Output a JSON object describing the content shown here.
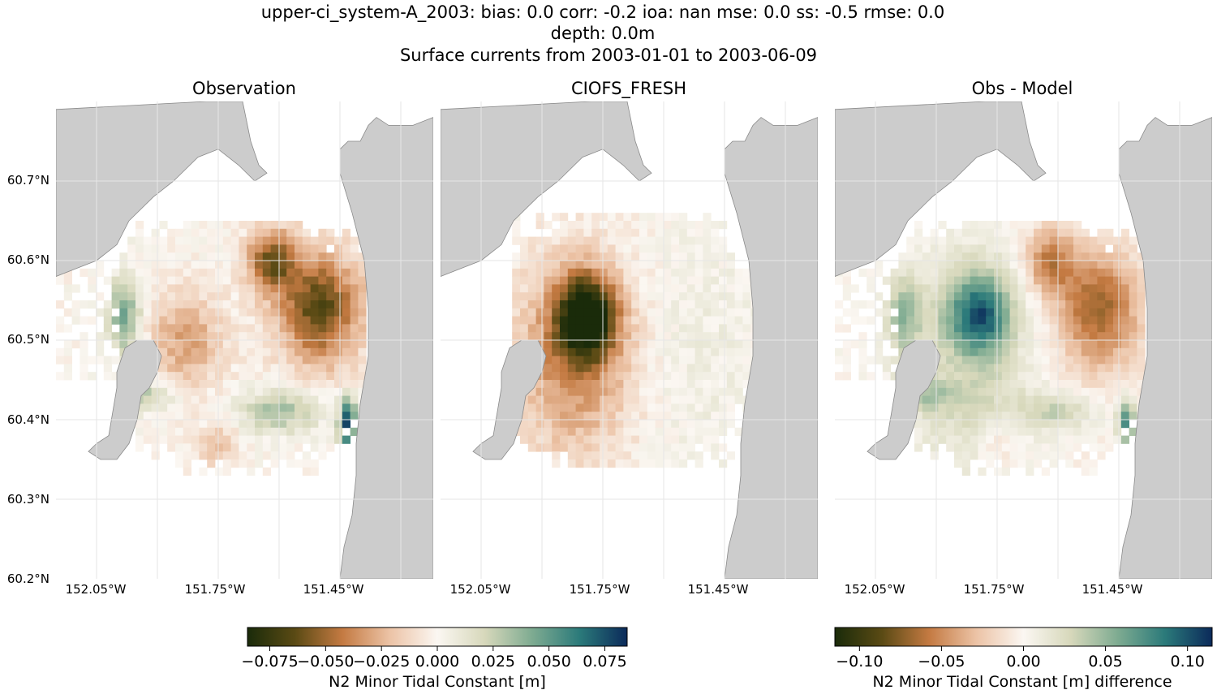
{
  "figure": {
    "title_line1": "upper-ci_system-A_2003: bias: 0.0  corr: -0.2  ioa: nan  mse: 0.0  ss: -0.5  rmse: 0.0",
    "title_line2": "depth: 0.0m",
    "title_line3": "Surface currents from 2003-01-01 to 2003-06-09"
  },
  "colors": {
    "land": "#cccccc",
    "land_edge": "#8a8a8a",
    "gridline": "#e6e6e6",
    "cmap_balance_stops": [
      "#1a2b0a",
      "#5a4a14",
      "#c47a42",
      "#ecc3a6",
      "#fbf7f2",
      "#d7d8bb",
      "#7eab91",
      "#2b7a7a",
      "#0b2a5a"
    ]
  },
  "chart_data": [
    {
      "type": "heatmap",
      "title": "Observation",
      "variable": "N2 Minor Tidal Constant",
      "x_ticks": [
        "152.05°W",
        "151.75°W",
        "151.45°W"
      ],
      "y_ticks": [
        "60.2°N",
        "60.3°N",
        "60.4°N",
        "60.5°N",
        "60.6°N",
        "60.7°N"
      ],
      "lon_range": [
        -152.15,
        -151.22
      ],
      "lat_range": [
        60.2,
        60.8
      ],
      "grid": true,
      "features": [
        {
          "region": "northeast (151.65–151.40°W, 60.48–60.64°N)",
          "value": -0.06
        },
        {
          "region": "center (151.90–151.70°W, 60.42–60.58°N)",
          "value": -0.02
        },
        {
          "region": "west edge (152.00–151.90°W, 60.48–60.58°N)",
          "value": 0.05
        },
        {
          "region": "south band (151.70–151.45°W, 60.40–60.44°N)",
          "value": 0.04
        },
        {
          "region": "east edge south (151.43°W, 60.38–60.42°N)",
          "value": 0.08
        }
      ]
    },
    {
      "type": "heatmap",
      "title": "CIOFS_FRESH",
      "variable": "N2 Minor Tidal Constant",
      "x_ticks": [
        "152.05°W",
        "151.75°W",
        "151.45°W"
      ],
      "lon_range": [
        -152.15,
        -151.22
      ],
      "lat_range": [
        60.2,
        60.8
      ],
      "grid": true,
      "features": [
        {
          "region": "core (151.78°W, 60.53°N)",
          "value": -0.08
        },
        {
          "region": "ring around core (151.95–151.60°W, 60.45–60.60°N)",
          "value": -0.03
        },
        {
          "region": "east (151.60–151.35°W, 60.35–60.65°N)",
          "value": 0.005
        }
      ]
    },
    {
      "type": "heatmap",
      "title": "Obs - Model",
      "variable": "N2 Minor Tidal Constant difference",
      "x_ticks": [
        "152.05°W",
        "151.75°W",
        "151.45°W"
      ],
      "lon_range": [
        -152.15,
        -151.22
      ],
      "lat_range": [
        60.2,
        60.8
      ],
      "grid": true,
      "features": [
        {
          "region": "northeast (151.65–151.40°W, 60.48–60.64°N)",
          "value": -0.07
        },
        {
          "region": "center (151.85–151.75°W, 60.50–60.56°N)",
          "value": 0.05
        },
        {
          "region": "west edge (152.00–151.90°W, 60.50–60.57°N)",
          "value": 0.09
        },
        {
          "region": "east edge south (151.43°W, 60.38–60.42°N)",
          "value": 0.1
        }
      ]
    }
  ],
  "colorbars": [
    {
      "label": "N2 Minor Tidal Constant [m]",
      "range": [
        -0.085,
        0.085
      ],
      "ticks": [
        "−0.075",
        "−0.050",
        "−0.025",
        "0.000",
        "0.025",
        "0.050",
        "0.075"
      ],
      "tick_values": [
        -0.075,
        -0.05,
        -0.025,
        0,
        0.025,
        0.05,
        0.075
      ]
    },
    {
      "label": "N2 Minor Tidal Constant [m] difference",
      "range": [
        -0.115,
        0.115
      ],
      "ticks": [
        "−0.10",
        "−0.05",
        "0.00",
        "0.05",
        "0.10"
      ],
      "tick_values": [
        -0.1,
        -0.05,
        0,
        0.05,
        0.1
      ]
    }
  ]
}
